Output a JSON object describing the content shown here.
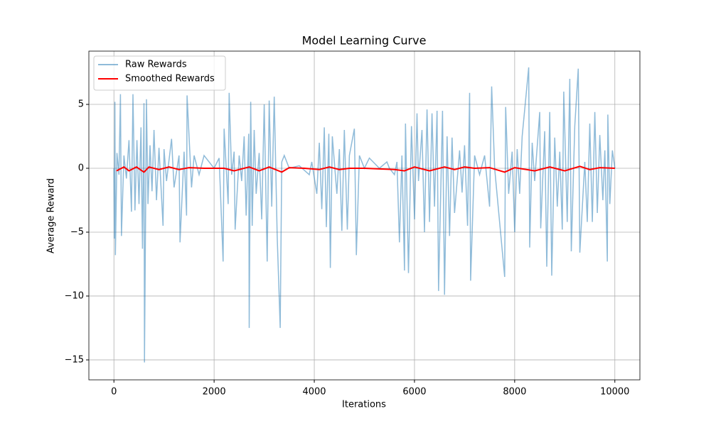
{
  "chart_data": {
    "type": "line",
    "title": "Model Learning Curve",
    "x_label": "Iterations",
    "y_label": "Average Reward",
    "xlim": [
      -500,
      10500
    ],
    "ylim": [
      -16.56,
      9.17
    ],
    "xticks": [
      0,
      2000,
      4000,
      6000,
      8000,
      10000
    ],
    "yticks": [
      {
        "value": -15,
        "label": "−15"
      },
      {
        "value": -10,
        "label": "−10"
      },
      {
        "value": -5,
        "label": "−5"
      },
      0,
      5
    ],
    "grid": true,
    "legend": "upper left",
    "series": [
      {
        "name": "Raw Rewards",
        "color": "#1f77b4",
        "opacity": 0.5,
        "x": [
          0,
          10,
          20,
          30,
          60,
          100,
          130,
          150,
          200,
          250,
          300,
          350,
          380,
          420,
          460,
          500,
          540,
          570,
          600,
          610,
          650,
          680,
          720,
          760,
          800,
          850,
          900,
          980,
          1000,
          1050,
          1150,
          1200,
          1300,
          1320,
          1400,
          1450,
          1460,
          1550,
          1600,
          1700,
          1800,
          2000,
          2100,
          2180,
          2200,
          2280,
          2300,
          2350,
          2400,
          2420,
          2500,
          2550,
          2600,
          2640,
          2690,
          2700,
          2730,
          2760,
          2800,
          2840,
          2900,
          2950,
          3000,
          3060,
          3100,
          3150,
          3200,
          3260,
          3320,
          3350,
          3400,
          3500,
          3700,
          3900,
          3950,
          4050,
          4100,
          4150,
          4200,
          4240,
          4290,
          4320,
          4360,
          4450,
          4500,
          4550,
          4600,
          4660,
          4700,
          4800,
          4840,
          4900,
          5000,
          5100,
          5300,
          5450,
          5500,
          5600,
          5650,
          5700,
          5750,
          5800,
          5820,
          5880,
          5940,
          6000,
          6050,
          6080,
          6150,
          6200,
          6250,
          6300,
          6350,
          6400,
          6450,
          6480,
          6560,
          6600,
          6650,
          6700,
          6750,
          6800,
          6900,
          6950,
          7000,
          7060,
          7100,
          7120,
          7200,
          7300,
          7400,
          7500,
          7540,
          7600,
          7800,
          7820,
          7880,
          7950,
          8000,
          8050,
          8100,
          8150,
          8280,
          8300,
          8350,
          8400,
          8500,
          8520,
          8600,
          8640,
          8700,
          8740,
          8800,
          8850,
          8900,
          8950,
          8980,
          9050,
          9100,
          9130,
          9200,
          9270,
          9300,
          9400,
          9450,
          9500,
          9550,
          9600,
          9650,
          9700,
          9760,
          9800,
          9850,
          9860,
          9900,
          9950,
          10000
        ],
        "values": [
          0,
          -5.5,
          5.2,
          -6.8,
          1.2,
          -0.5,
          5.8,
          -5.3,
          1,
          -0.8,
          2.2,
          -3.4,
          5.8,
          -3.3,
          2.2,
          -2.8,
          3.2,
          -6.3,
          5.1,
          -15.2,
          5.4,
          -2.8,
          1.8,
          -1.8,
          3,
          -2.5,
          1.6,
          -4.5,
          1.5,
          -1,
          2.3,
          -1.5,
          1,
          -5.8,
          1.3,
          -3.7,
          5.7,
          -1.5,
          1,
          -0.5,
          1,
          0,
          0.8,
          -7.3,
          3.1,
          -2.8,
          5.9,
          -0.5,
          1.3,
          -4.8,
          1,
          -1,
          2.5,
          -3.7,
          2.7,
          -12.5,
          5.2,
          -4.5,
          3,
          -2,
          1.2,
          -4,
          5,
          -7.3,
          5.3,
          -3,
          5.6,
          -5.4,
          -12.5,
          0.5,
          1,
          0,
          0.2,
          -0.5,
          0.5,
          -2,
          2,
          -3.2,
          3.2,
          -4.6,
          2.7,
          -7.8,
          2.5,
          -2,
          1.5,
          -4.9,
          3,
          -4.8,
          1,
          3.1,
          -6.8,
          1,
          0,
          0.8,
          0,
          0.5,
          0,
          -0.5,
          0.5,
          -5.8,
          1,
          -8,
          3.5,
          -8.2,
          3.3,
          -4,
          4.3,
          -1,
          3,
          -5,
          4.6,
          -4.2,
          4.3,
          -3,
          4.5,
          -9.6,
          4.5,
          -9.9,
          2.5,
          -5.3,
          2.4,
          -3.5,
          1.4,
          -1.9,
          1.8,
          -4.5,
          5.9,
          -8.8,
          1,
          -0.5,
          1,
          -3,
          6.4,
          0,
          -8.5,
          4.8,
          -2,
          1.3,
          -5,
          1.5,
          -2,
          2.5,
          7.9,
          -6.2,
          2,
          -1,
          4.4,
          -4.7,
          2.9,
          -7.7,
          4.4,
          -8.4,
          2.4,
          -3,
          1.3,
          -4.8,
          6,
          -4.2,
          7,
          -6.5,
          3.3,
          7.8,
          -6.6,
          0.5,
          -4.2,
          3.5,
          -4.2,
          4.4,
          -3.5,
          2.6,
          -2.5,
          1.4,
          -7.3,
          4.2,
          -2.8,
          1.4,
          0
        ]
      },
      {
        "name": "Smoothed Rewards",
        "color": "#ff0000",
        "opacity": 1,
        "x": [
          50,
          200,
          300,
          450,
          600,
          700,
          900,
          1100,
          1300,
          1500,
          1800,
          2200,
          2400,
          2700,
          2900,
          3100,
          3350,
          3500,
          3800,
          4100,
          4300,
          4500,
          4700,
          5000,
          5600,
          5800,
          6000,
          6300,
          6600,
          6800,
          7000,
          7200,
          7500,
          7800,
          8000,
          8400,
          8700,
          9000,
          9300,
          9500,
          9700,
          10000
        ],
        "values": [
          -0.2,
          0.1,
          -0.2,
          0.1,
          -0.3,
          0.1,
          -0.1,
          0.1,
          -0.1,
          0.05,
          0,
          0,
          -0.2,
          0.1,
          -0.2,
          0.1,
          -0.3,
          0.05,
          0,
          -0.1,
          0.1,
          -0.1,
          0,
          0,
          -0.1,
          -0.2,
          0.1,
          -0.2,
          0.1,
          -0.1,
          0.1,
          0,
          0.05,
          -0.3,
          0.05,
          -0.2,
          0.1,
          -0.2,
          0.15,
          -0.1,
          0.05,
          0
        ]
      }
    ]
  }
}
